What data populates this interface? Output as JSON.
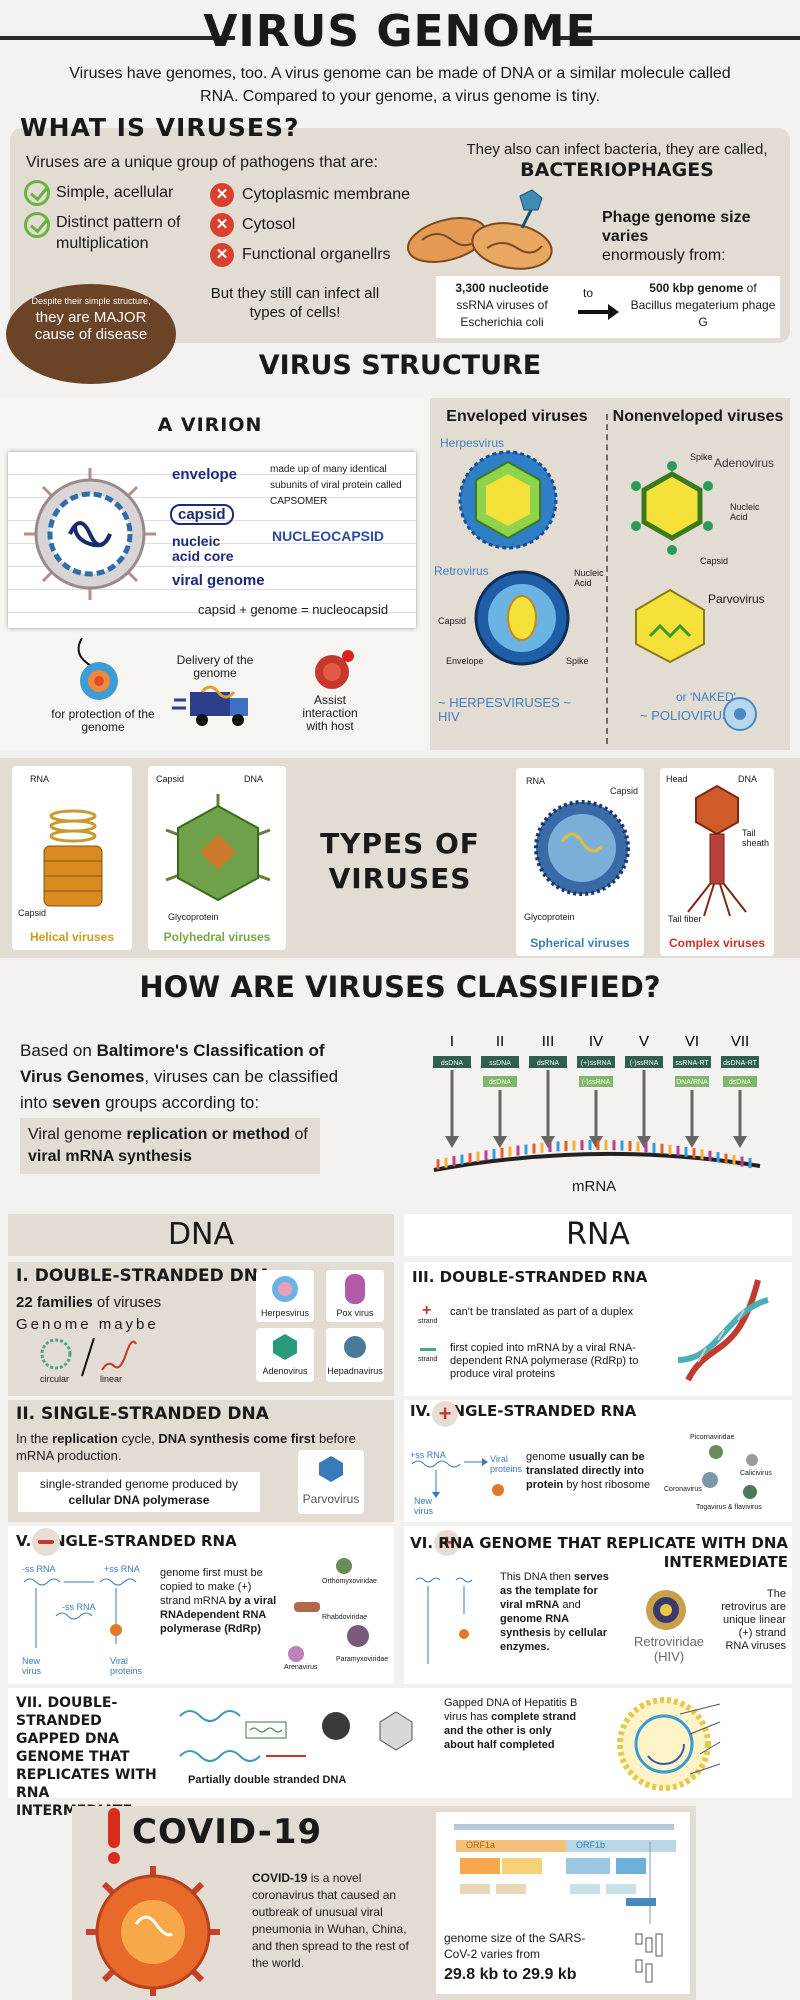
{
  "header": {
    "title": "VIRUS GENOME",
    "intro": "Viruses have genomes, too. A virus genome can be made of DNA or a similar molecule called RNA. Compared to your genome, a virus genome is tiny."
  },
  "what": {
    "title": "WHAT IS VIRUSES?",
    "lead": "Viruses are a unique group of pathogens that are:",
    "are": [
      "Simple, acellular",
      "Distinct pattern of multiplication"
    ],
    "not": [
      "Cytoplasmic membrane",
      "Cytosol",
      "Functional organellrs"
    ],
    "bubble_small": "Despite their simple structure,",
    "bubble_big": "they are MAJOR cause of disease",
    "infect": "But they still can infect all types of cells!",
    "bact_a": "They also can infect bacteria, they are called,",
    "bact_b": "BACTERIOPHAGES",
    "phage_title": "Phage genome size varies",
    "phage_sub": "enormously from:",
    "from_bold": "3,300 nucleotide",
    "from_rest": "ssRNA viruses of Escherichia coli",
    "to": "to",
    "to_bold": "500 kbp genome",
    "to_rest": "of Bacillus megaterium phage G"
  },
  "structure": {
    "title": "VIRUS STRUCTURE",
    "virion": "A VIRION",
    "labels": {
      "envelope": "envelope",
      "capsid": "capsid",
      "nucleic": "nucleic acid core",
      "viral": "viral genome",
      "nucleocapsid": "NUCLEOCAPSID",
      "note": "made up of many identical subunits of viral protein called CAPSOMER",
      "formula": "capsid + genome = nucleocapsid"
    },
    "functions": [
      "for protection of the genome",
      "Delivery of the genome",
      "Assist interaction with host"
    ],
    "env_title": "Enveloped viruses",
    "nonenv_title": "Nonenveloped viruses",
    "herpes": "Herpesvirus",
    "retro": "Retrovirus",
    "adeno": "Adenovirus",
    "parvo": "Parvovirus",
    "retro_parts": [
      "Nucleic Acid",
      "Capsid",
      "Envelope",
      "Spike"
    ],
    "adeno_parts": [
      "Spike",
      "Nucleic Acid",
      "Capsid"
    ],
    "env_examples": "~ HERPESVIRUSES ~ HIV",
    "naked": "or 'NAKED'",
    "polio": "~ POLIOVIRUS"
  },
  "types": {
    "title": "TYPES OF VIRUSES",
    "cards": [
      {
        "name": "Helical viruses",
        "color": "#d19a1f",
        "labels": [
          "RNA",
          "Capsid"
        ]
      },
      {
        "name": "Polyhedral viruses",
        "color": "#79a547",
        "labels": [
          "Capsid",
          "DNA",
          "Glycoprotein"
        ]
      },
      {
        "name": "Spherical viruses",
        "color": "#3d7fae",
        "labels": [
          "RNA",
          "Capsid",
          "Glycoprotein"
        ]
      },
      {
        "name": "Complex viruses",
        "color": "#c9342b",
        "labels": [
          "Head",
          "DNA",
          "Tail sheath",
          "Tail fiber"
        ]
      }
    ]
  },
  "classify": {
    "title": "HOW ARE VIRUSES CLASSIFIED?",
    "p1a": "Based on ",
    "p1b": "Baltimore's Classification of Virus Genomes",
    "p1c": ", viruses can be classified into ",
    "p1d": "seven",
    "p1e": " groups according to:",
    "box_a": "Viral genome ",
    "box_b": "replication or method",
    "box_c": " of ",
    "box_d": "viral mRNA synthesis",
    "roman": [
      "I",
      "II",
      "III",
      "IV",
      "V",
      "VI",
      "VII"
    ],
    "tags": [
      "dsDNA",
      "ssDNA",
      "dsRNA",
      "(+)ssRNA",
      "(-)ssRNA",
      "ssRNA-RT",
      "dsDNA-RT"
    ],
    "tags2": [
      "",
      "dsDNA",
      "",
      "(-)ssRNA",
      "",
      "DNA/RNA",
      "dsDNA"
    ],
    "mrna": "mRNA"
  },
  "dna_head": "DNA",
  "rna_head": "RNA",
  "g1": {
    "title": "I. DOUBLE-STRANDED DNA",
    "a": "22 families",
    "b": " of viruses",
    "c": "Genome maybe",
    "d": "circular",
    "e": "linear",
    "viruses": [
      "Herpesvirus",
      "Pox virus",
      "Adenovirus",
      "Hepadnavirus"
    ]
  },
  "g2": {
    "title": "II. SINGLE-STRANDED DNA",
    "a": "In the ",
    "b": "replication",
    "c": " cycle, ",
    "d": "DNA synthesis come first",
    "e": " before mRNA production.",
    "f": "single-stranded genome produced by",
    "g": "cellular DNA polymerase",
    "h": "Parvovirus"
  },
  "g3": {
    "title": "III. DOUBLE-STRANDED RNA",
    "a": "can't be translated as part of a duplex",
    "b": "first copied into mRNA by a viral RNA-dependent RNA polymerase (RdRp) to produce viral proteins",
    "strand": "strand"
  },
  "g4": {
    "title": "IV. SINGLE-STRANDED RNA",
    "a": "genome ",
    "b": "usually can be translated directly into protein",
    "c": " by host ribosome",
    "labels": [
      "+ss RNA",
      "Viral proteins",
      "New virus"
    ],
    "viruses": [
      "Picornaviridae",
      "Calicivirus",
      "Coronavirus",
      "Togavirus & flavivirus"
    ]
  },
  "g5": {
    "title": "V. SINGLE-STRANDED RNA",
    "a": "genome first must be copied to make (+) strand mRNA ",
    "b": "by a viral RNAdependent RNA polymerase (RdRp)",
    "labels": [
      "-ss RNA",
      "+ss RNA",
      "-ss RNA",
      "New virus",
      "Viral proteins"
    ],
    "viruses": [
      "Orthomyxoviridae",
      "Rhabdoviridae",
      "Arenavirus",
      "Paramyxoviridae"
    ]
  },
  "g6": {
    "title": "VI. RNA GENOME THAT REPLICATE WITH DNA INTERMEDIATE",
    "a": "This DNA then ",
    "b": "serves as the template for viral mRNA",
    "c": " and ",
    "d": "genome RNA synthesis",
    "e": " by ",
    "f": "cellular enzymes.",
    "g": "Retroviridae (HIV)",
    "h": "The retrovirus are unique linear (+) strand RNA viruses"
  },
  "g7": {
    "title": "VII. DOUBLE-STRANDED GAPPED DNA GENOME THAT REPLICATES WITH RNA INTERMEDIATE",
    "a": "Partially double stranded DNA",
    "b": "Gapped DNA of Hepatitis B virus has ",
    "c": "complete strand and the other is only about half completed"
  },
  "covid": {
    "title": "COVID-19",
    "a": "COVID-19",
    "b": " is a novel coronavirus that caused an outbreak of unusual viral pneumonia in Wuhan, China, and then spread to the rest of the world.",
    "c": "genome size of the SARS-CoV-2 varies from",
    "d": "29.8 kb to 29.9 kb",
    "orf1a": "ORF1a",
    "orf1b": "ORF1b"
  }
}
